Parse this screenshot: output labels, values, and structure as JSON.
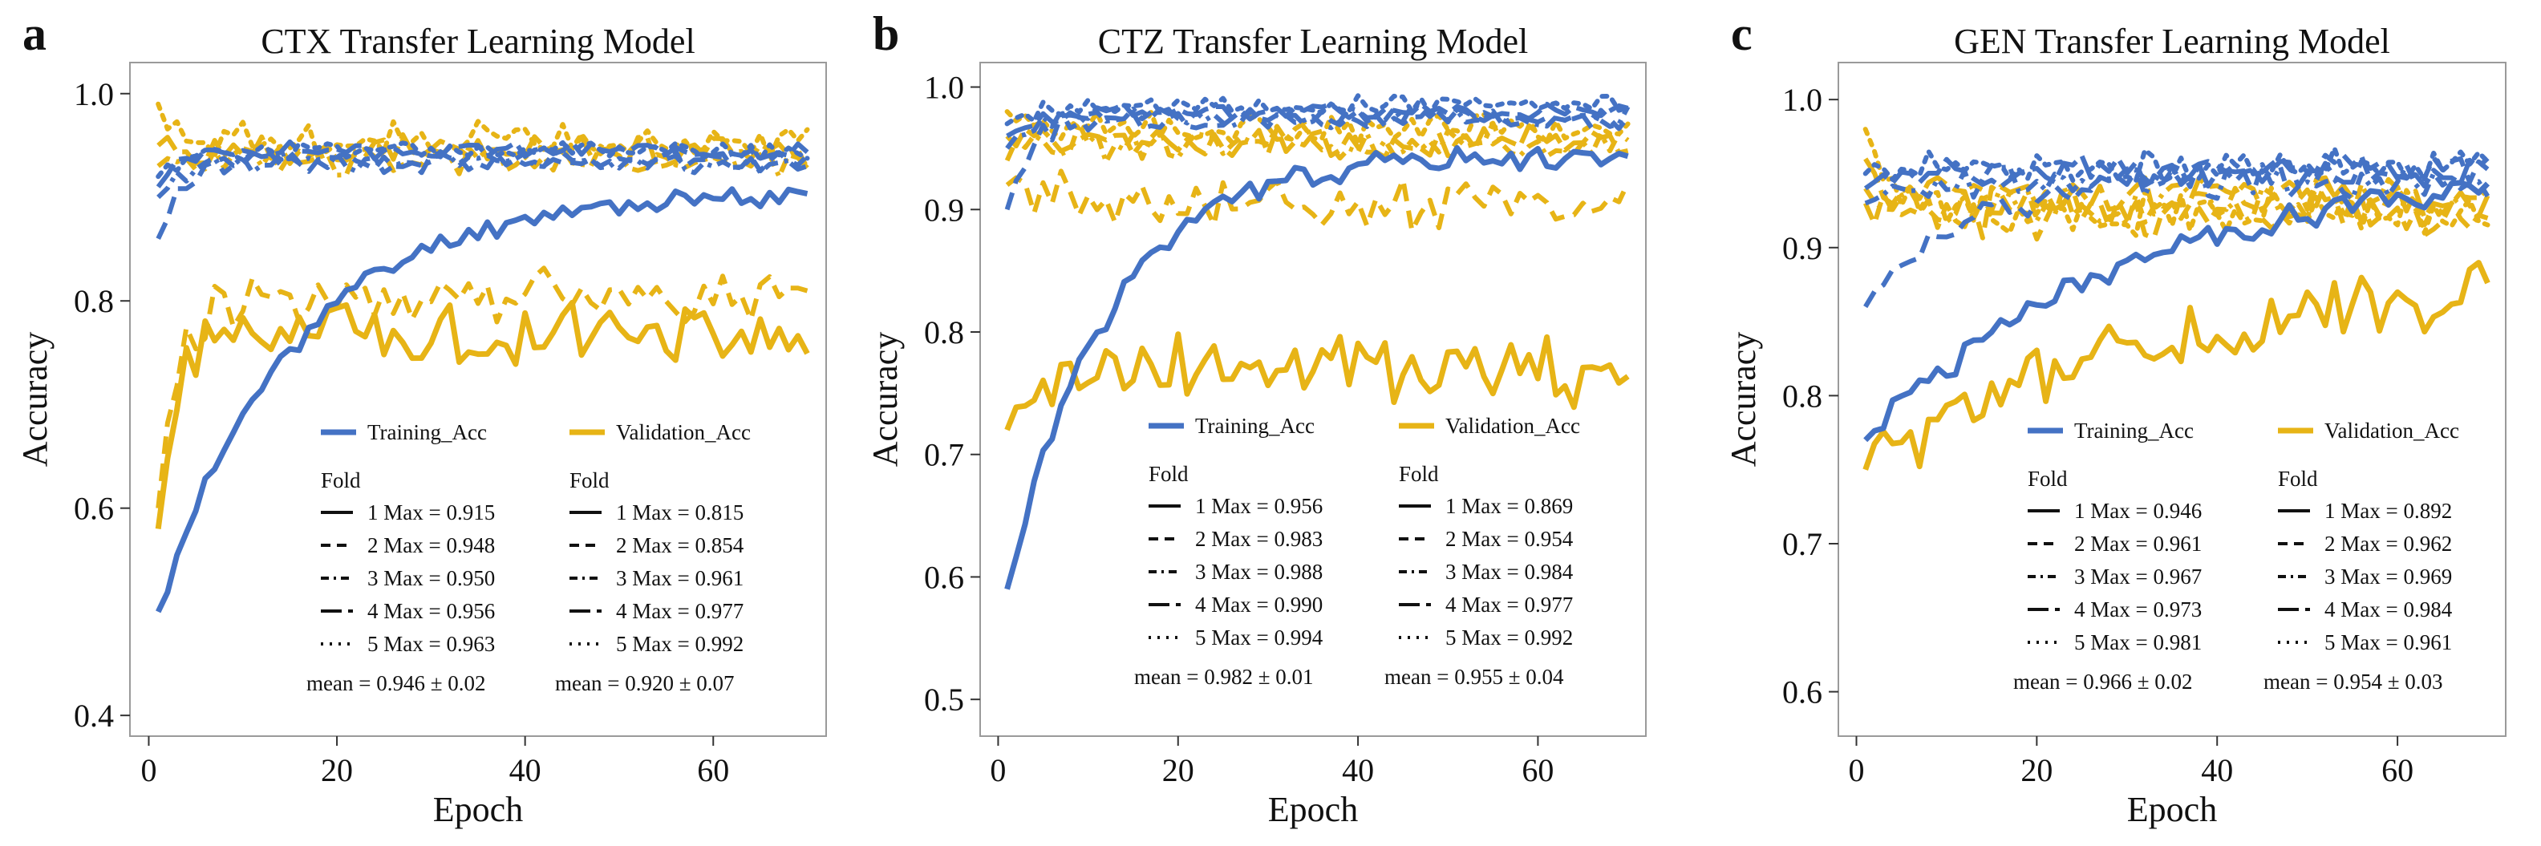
{
  "figure": {
    "colors": {
      "training": "#4472c4",
      "validation": "#e7b416",
      "frame": "#9a9a9a",
      "axis": "#333333"
    }
  },
  "chart_data": [
    {
      "type": "line",
      "panel": "a",
      "title": "CTX Transfer Learning Model",
      "xlabel": "Epoch",
      "ylabel": "Accuracy",
      "xlim": [
        -2,
        72
      ],
      "ylim": [
        0.38,
        1.03
      ],
      "xticks": [
        "0",
        "20",
        "40",
        "60"
      ],
      "yticks": [
        "0.4",
        "0.6",
        "0.8",
        "1.0"
      ],
      "xtick_values": [
        0,
        20,
        40,
        60
      ],
      "ytick_values": [
        0.4,
        0.6,
        0.8,
        1.0
      ],
      "legend": {
        "training_label": "Training_Acc",
        "validation_label": "Validation_Acc",
        "fold_header": "Fold",
        "training_folds": [
          "1  Max = 0.915",
          "2  Max = 0.948",
          "3  Max = 0.950",
          "4  Max = 0.956",
          "5  Max = 0.963"
        ],
        "validation_folds": [
          "1  Max = 0.815",
          "2  Max = 0.854",
          "3  Max = 0.961",
          "4  Max = 0.977",
          "5  Max = 0.992"
        ],
        "training_mean": "mean = 0.946 ± 0.02",
        "validation_mean": "mean = 0.920 ± 0.07"
      },
      "series": [
        {
          "name": "Training Fold 1",
          "group": "training",
          "dash": "solid",
          "start": 0.5,
          "plateau": 0.905,
          "rate": 0.07,
          "noise": 0.008,
          "seed": 11
        },
        {
          "name": "Training Fold 2",
          "group": "training",
          "dash": "dash",
          "start": 0.86,
          "plateau": 0.935,
          "rate": 0.4,
          "noise": 0.008,
          "seed": 12
        },
        {
          "name": "Training Fold 3",
          "group": "training",
          "dash": "dashdot",
          "start": 0.9,
          "plateau": 0.935,
          "rate": 0.4,
          "noise": 0.009,
          "seed": 13
        },
        {
          "name": "Training Fold 4",
          "group": "training",
          "dash": "longdash",
          "start": 0.91,
          "plateau": 0.945,
          "rate": 0.4,
          "noise": 0.006,
          "seed": 14
        },
        {
          "name": "Training Fold 5",
          "group": "training",
          "dash": "dot",
          "start": 0.92,
          "plateau": 0.945,
          "rate": 0.4,
          "noise": 0.007,
          "seed": 15
        },
        {
          "name": "Validation Fold 1",
          "group": "validation",
          "dash": "solid",
          "start": 0.58,
          "plateau": 0.77,
          "rate": 0.5,
          "noise": 0.022,
          "seed": 21
        },
        {
          "name": "Validation Fold 2",
          "group": "validation",
          "dash": "dash",
          "start": 0.6,
          "plateau": 0.805,
          "rate": 0.5,
          "noise": 0.02,
          "seed": 22
        },
        {
          "name": "Validation Fold 3",
          "group": "validation",
          "dash": "dashdot",
          "start": 0.93,
          "plateau": 0.935,
          "rate": 0.5,
          "noise": 0.012,
          "seed": 23
        },
        {
          "name": "Validation Fold 4",
          "group": "validation",
          "dash": "longdash",
          "start": 0.95,
          "plateau": 0.945,
          "rate": 0.5,
          "noise": 0.012,
          "seed": 24
        },
        {
          "name": "Validation Fold 5",
          "group": "validation",
          "dash": "dot",
          "start": 0.99,
          "plateau": 0.955,
          "rate": 0.5,
          "noise": 0.013,
          "seed": 25
        }
      ]
    },
    {
      "type": "line",
      "panel": "b",
      "title": "CTZ Transfer Learning Model",
      "xlabel": "Epoch",
      "ylabel": "Accuracy",
      "xlim": [
        -2,
        72
      ],
      "ylim": [
        0.47,
        1.02
      ],
      "xticks": [
        "0",
        "20",
        "40",
        "60"
      ],
      "yticks": [
        "0.5",
        "0.6",
        "0.7",
        "0.8",
        "0.9",
        "1.0"
      ],
      "xtick_values": [
        0,
        20,
        40,
        60
      ],
      "ytick_values": [
        0.5,
        0.6,
        0.7,
        0.8,
        0.9,
        1.0
      ],
      "legend": {
        "training_label": "Training_Acc",
        "validation_label": "Validation_Acc",
        "fold_header": "Fold",
        "training_folds": [
          "1  Max = 0.956",
          "2  Max = 0.983",
          "3  Max = 0.988",
          "4  Max = 0.990",
          "5  Max = 0.994"
        ],
        "validation_folds": [
          "1  Max = 0.869",
          "2  Max = 0.954",
          "3  Max = 0.984",
          "4  Max = 0.977",
          "5  Max = 0.992"
        ],
        "training_mean": "mean = 0.982 ± 0.01",
        "validation_mean": "mean = 0.955 ± 0.04"
      },
      "series": [
        {
          "name": "Training Fold 1",
          "group": "training",
          "dash": "solid",
          "start": 0.59,
          "plateau": 0.945,
          "rate": 0.09,
          "noise": 0.008,
          "seed": 31
        },
        {
          "name": "Training Fold 2",
          "group": "training",
          "dash": "dash",
          "start": 0.9,
          "plateau": 0.975,
          "rate": 0.4,
          "noise": 0.007,
          "seed": 32
        },
        {
          "name": "Training Fold 3",
          "group": "training",
          "dash": "dashdot",
          "start": 0.95,
          "plateau": 0.975,
          "rate": 0.4,
          "noise": 0.007,
          "seed": 33
        },
        {
          "name": "Training Fold 4",
          "group": "training",
          "dash": "longdash",
          "start": 0.96,
          "plateau": 0.98,
          "rate": 0.4,
          "noise": 0.006,
          "seed": 34
        },
        {
          "name": "Training Fold 5",
          "group": "training",
          "dash": "dot",
          "start": 0.97,
          "plateau": 0.985,
          "rate": 0.4,
          "noise": 0.006,
          "seed": 35
        },
        {
          "name": "Validation Fold 1",
          "group": "validation",
          "dash": "solid",
          "start": 0.72,
          "plateau": 0.77,
          "rate": 0.3,
          "noise": 0.025,
          "seed": 41
        },
        {
          "name": "Validation Fold 2",
          "group": "validation",
          "dash": "dash",
          "start": 0.92,
          "plateau": 0.905,
          "rate": 0.4,
          "noise": 0.018,
          "seed": 42
        },
        {
          "name": "Validation Fold 3",
          "group": "validation",
          "dash": "dashdot",
          "start": 0.94,
          "plateau": 0.955,
          "rate": 0.4,
          "noise": 0.012,
          "seed": 43
        },
        {
          "name": "Validation Fold 4",
          "group": "validation",
          "dash": "longdash",
          "start": 0.96,
          "plateau": 0.955,
          "rate": 0.4,
          "noise": 0.01,
          "seed": 44
        },
        {
          "name": "Validation Fold 5",
          "group": "validation",
          "dash": "dot",
          "start": 0.98,
          "plateau": 0.965,
          "rate": 0.4,
          "noise": 0.01,
          "seed": 45
        }
      ]
    },
    {
      "type": "line",
      "panel": "c",
      "title": "GEN Transfer Learning Model",
      "xlabel": "Epoch",
      "ylabel": "Accuracy",
      "xlim": [
        -2,
        72
      ],
      "ylim": [
        0.57,
        1.025
      ],
      "xticks": [
        "0",
        "20",
        "40",
        "60"
      ],
      "yticks": [
        "0.6",
        "0.7",
        "0.8",
        "0.9",
        "1.0"
      ],
      "xtick_values": [
        0,
        20,
        40,
        60
      ],
      "ytick_values": [
        0.6,
        0.7,
        0.8,
        0.9,
        1.0
      ],
      "legend": {
        "training_label": "Training_Acc",
        "validation_label": "Validation_Acc",
        "fold_header": "Fold",
        "training_folds": [
          "1  Max = 0.946",
          "2  Max = 0.961",
          "3  Max = 0.967",
          "4  Max = 0.973",
          "5  Max = 0.981"
        ],
        "validation_folds": [
          "1  Max = 0.892",
          "2  Max = 0.962",
          "3  Max = 0.969",
          "4  Max = 0.984",
          "5  Max = 0.961"
        ],
        "training_mean": "mean = 0.966 ± 0.02",
        "validation_mean": "mean = 0.954 ± 0.03"
      },
      "series": [
        {
          "name": "Training Fold 1",
          "group": "training",
          "dash": "solid",
          "start": 0.77,
          "plateau": 0.955,
          "rate": 0.035,
          "noise": 0.008,
          "seed": 51
        },
        {
          "name": "Training Fold 2",
          "group": "training",
          "dash": "dash",
          "start": 0.86,
          "plateau": 0.955,
          "rate": 0.08,
          "noise": 0.008,
          "seed": 52
        },
        {
          "name": "Training Fold 3",
          "group": "training",
          "dash": "dashdot",
          "start": 0.93,
          "plateau": 0.945,
          "rate": 0.4,
          "noise": 0.01,
          "seed": 53
        },
        {
          "name": "Training Fold 4",
          "group": "training",
          "dash": "longdash",
          "start": 0.94,
          "plateau": 0.95,
          "rate": 0.4,
          "noise": 0.009,
          "seed": 54
        },
        {
          "name": "Training Fold 5",
          "group": "training",
          "dash": "dot",
          "start": 0.95,
          "plateau": 0.955,
          "rate": 0.4,
          "noise": 0.009,
          "seed": 55
        },
        {
          "name": "Validation Fold 1",
          "group": "validation",
          "dash": "solid",
          "start": 0.75,
          "plateau": 0.885,
          "rate": 0.03,
          "noise": 0.018,
          "seed": 61
        },
        {
          "name": "Validation Fold 2",
          "group": "validation",
          "dash": "dash",
          "start": 0.93,
          "plateau": 0.925,
          "rate": 0.4,
          "noise": 0.014,
          "seed": 62
        },
        {
          "name": "Validation Fold 3",
          "group": "validation",
          "dash": "dashdot",
          "start": 0.94,
          "plateau": 0.93,
          "rate": 0.4,
          "noise": 0.012,
          "seed": 63
        },
        {
          "name": "Validation Fold 4",
          "group": "validation",
          "dash": "longdash",
          "start": 0.96,
          "plateau": 0.935,
          "rate": 0.4,
          "noise": 0.012,
          "seed": 64
        },
        {
          "name": "Validation Fold 5",
          "group": "validation",
          "dash": "dot",
          "start": 0.98,
          "plateau": 0.925,
          "rate": 0.4,
          "noise": 0.012,
          "seed": 65
        }
      ]
    }
  ]
}
